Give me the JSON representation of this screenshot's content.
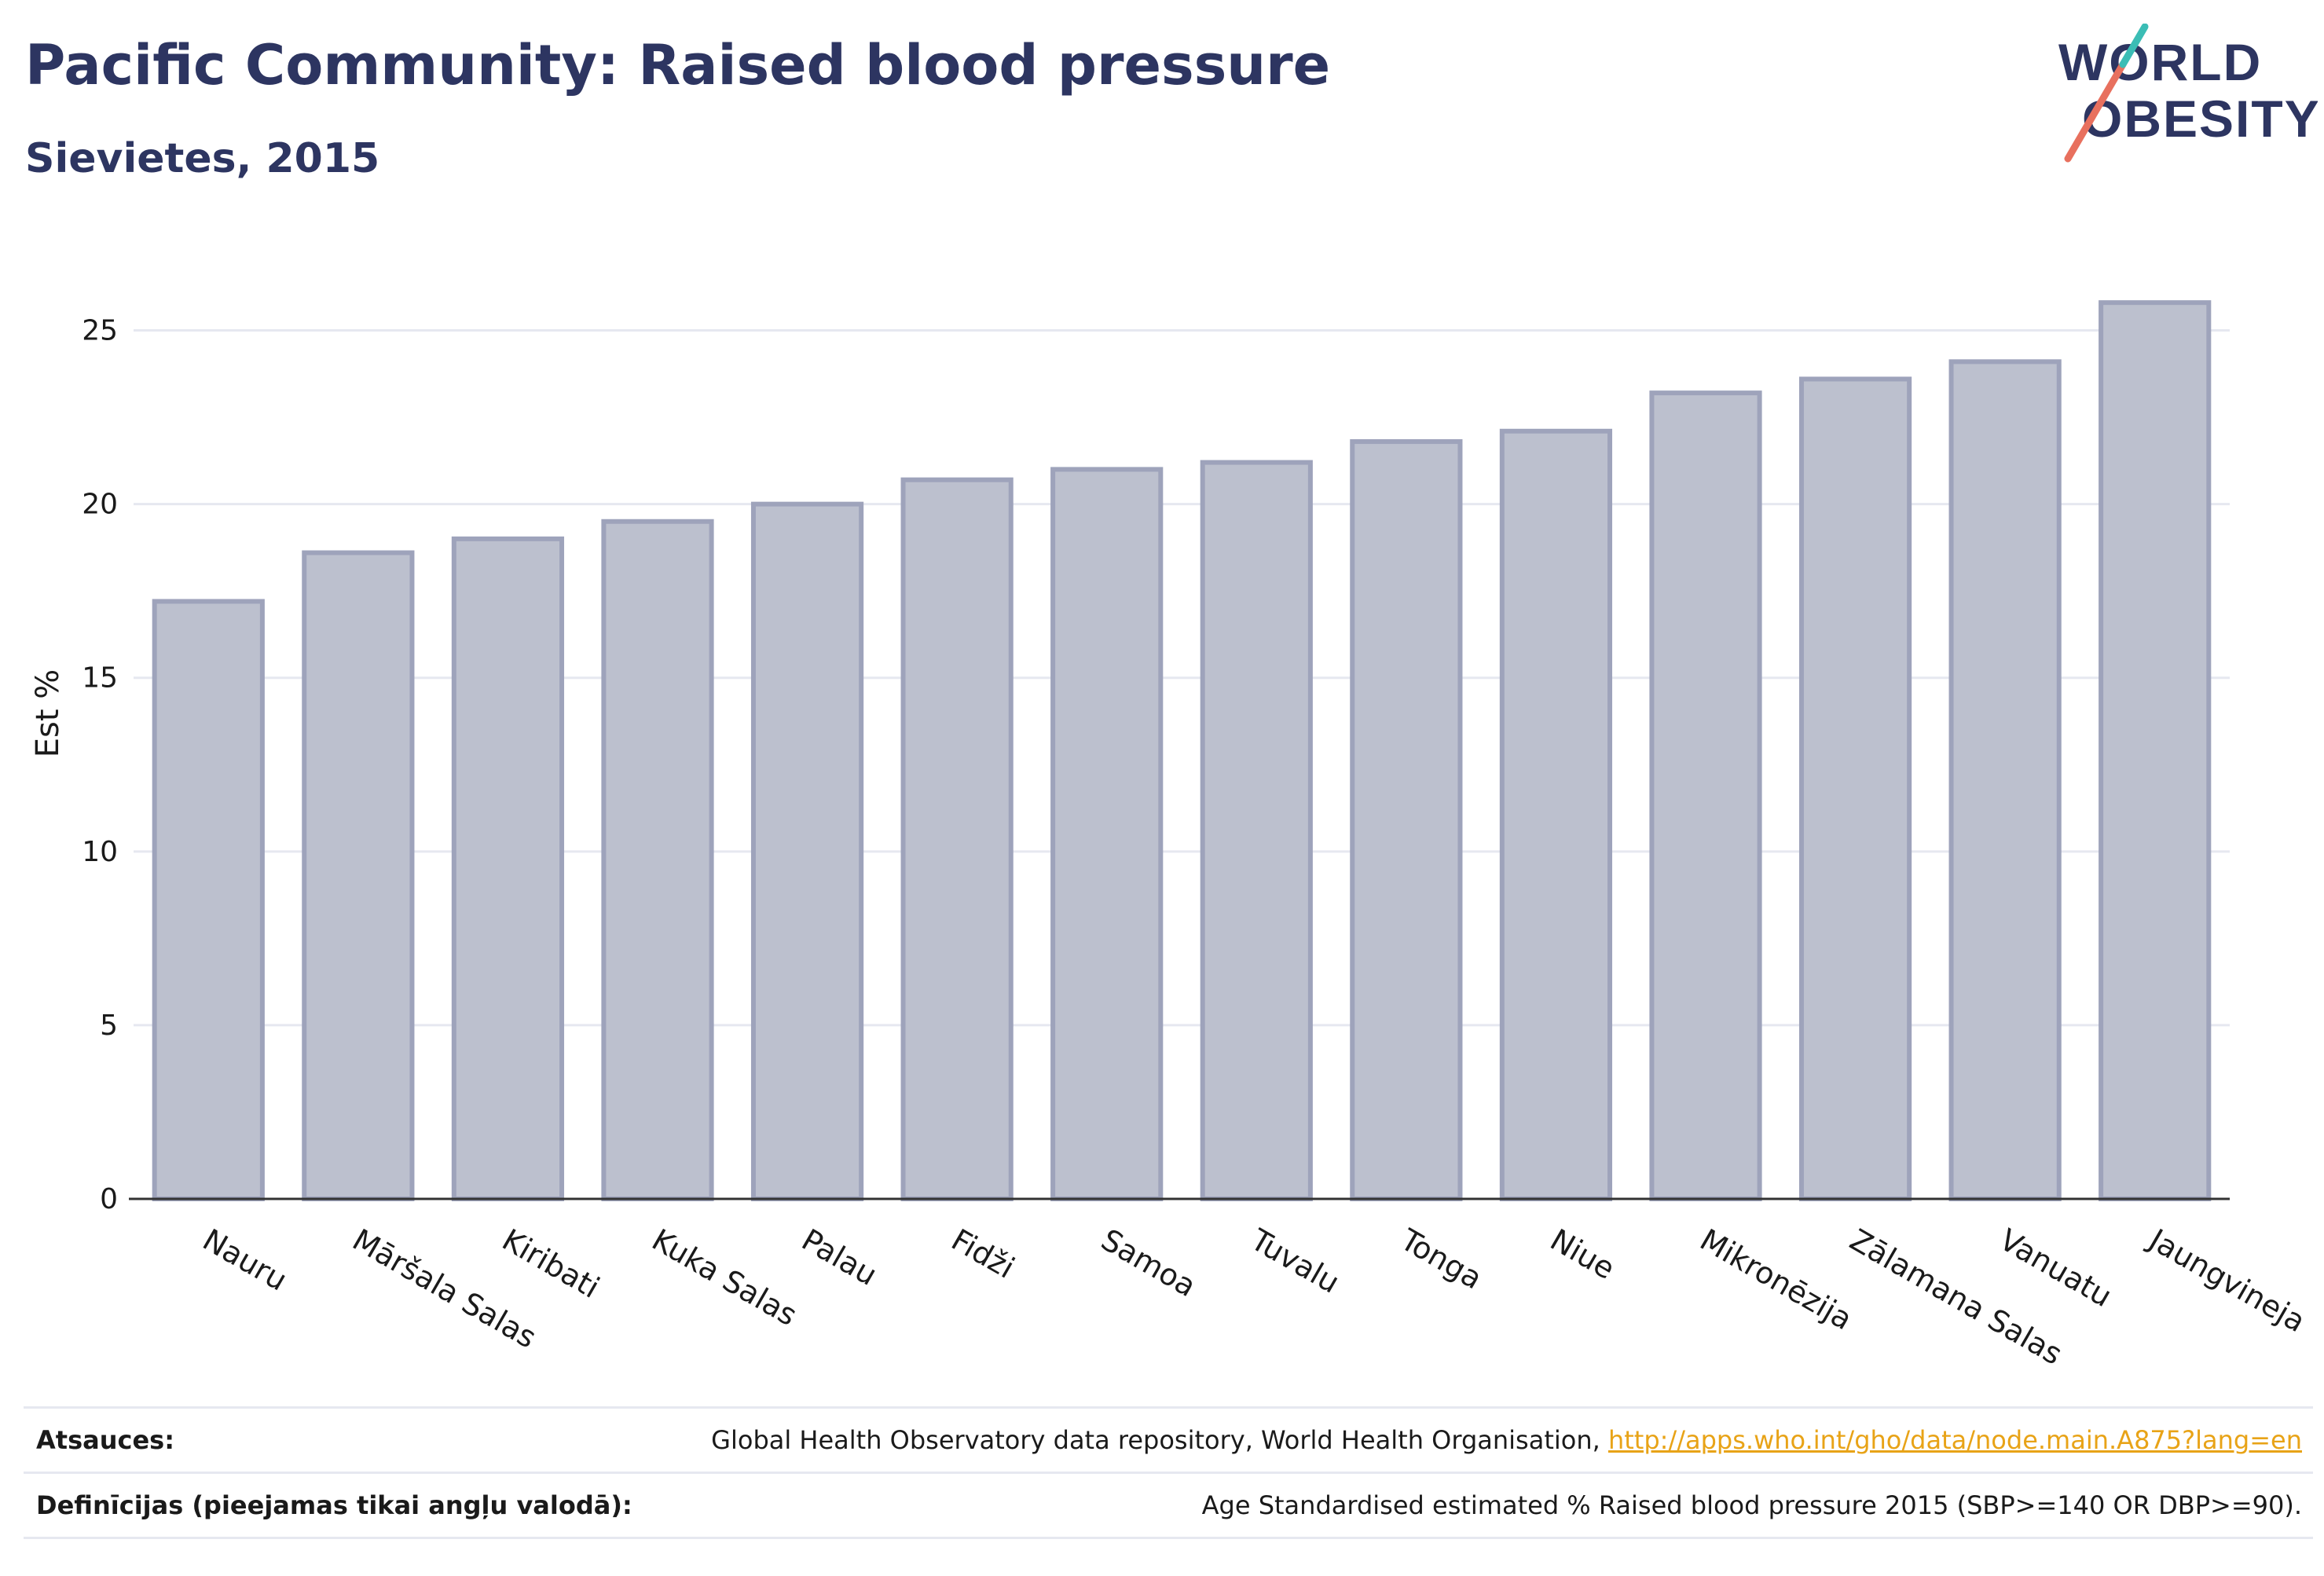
{
  "header": {
    "title": "Pacific Community: Raised blood pressure",
    "subtitle": "Sievietes, 2015"
  },
  "logo": {
    "line1": "WORLD",
    "line2": "OBESITY"
  },
  "chart_data": {
    "type": "bar",
    "categories": [
      "Nauru",
      "Māršala Salas",
      "Kiribati",
      "Kuka Salas",
      "Palau",
      "Fidži",
      "Samoa",
      "Tuvalu",
      "Tonga",
      "Niue",
      "Mikronēzija",
      "Zālamana Salas",
      "Vanuatu",
      "Jaungvineja"
    ],
    "values": [
      17.2,
      18.6,
      19.0,
      19.5,
      20.0,
      20.7,
      21.0,
      21.2,
      21.8,
      22.1,
      23.2,
      23.6,
      24.1,
      25.8
    ],
    "title": "",
    "xlabel": "",
    "ylabel": "Est %",
    "ylim": [
      0,
      27.5
    ],
    "yticks": [
      0,
      5,
      10,
      15,
      20,
      25
    ],
    "grid": true,
    "bar_fill": "#bcc0ce",
    "bar_stroke": "#9ea3bb",
    "axis_color": "#333333"
  },
  "footer": {
    "sources_label": "Atsauces:",
    "sources_text": "Global Health Observatory data repository, World Health Organisation, ",
    "sources_link": "http://apps.who.int/gho/data/node.main.A875?lang=en",
    "definitions_label": "Definīcijas (pieejamas tikai angļu valodā):",
    "definitions_text": "Age Standardised estimated % Raised blood pressure 2015 (SBP>=140 OR DBP>=90)."
  }
}
